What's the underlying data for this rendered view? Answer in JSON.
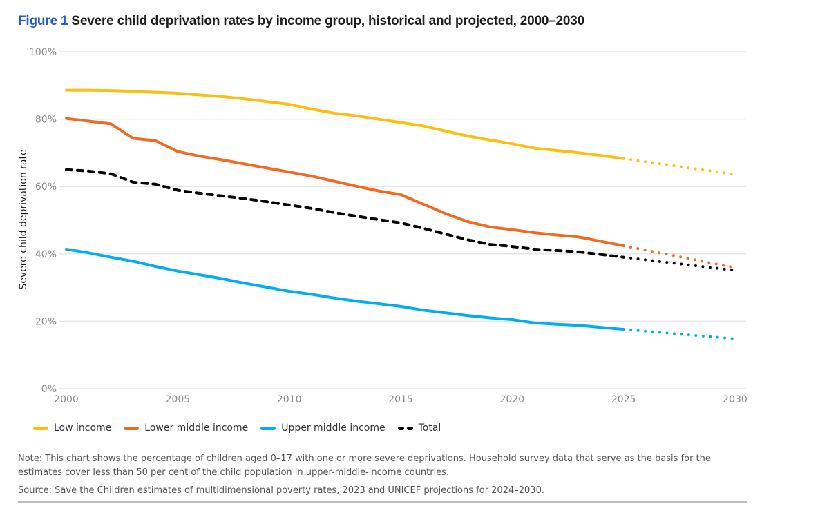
{
  "figure_label": "Figure 1",
  "title": "Severe child deprivation rates by income group, historical and projected, 2000–2030",
  "note": "Note: This chart shows the percentage of children aged 0–17 with one or more severe deprivations. Household survey data that serve as the basis for the estimates cover less than 50 per cent of the child population in upper-middle-income countries.",
  "source": "Source: Save the Children estimates of multidimensional poverty rates, 2023 and UNICEF projections for 2024–2030.",
  "legend": [
    {
      "name": "Low income",
      "color": "#fcbf10",
      "style": "solid"
    },
    {
      "name": "Lower middle income",
      "color": "#f26a21",
      "style": "solid"
    },
    {
      "name": "Upper middle income",
      "color": "#00aeef",
      "style": "solid"
    },
    {
      "name": "Total",
      "color": "#000000",
      "style": "dashed"
    }
  ],
  "chart_data": {
    "type": "line",
    "title": "Severe child deprivation rates by income group, historical and projected, 2000–2030",
    "xlabel": "",
    "ylabel": "Severe child deprivation rate",
    "xlim": [
      2000,
      2030
    ],
    "ylim": [
      0,
      100
    ],
    "x_ticks": [
      "2000",
      "2005",
      "2010",
      "2015",
      "2020",
      "2025",
      "2030"
    ],
    "y_ticks": [
      "0%",
      "20%",
      "40%",
      "60%",
      "80%",
      "100%"
    ],
    "y_tick_values": [
      0,
      20,
      40,
      60,
      80,
      100
    ],
    "grid": "horizontal",
    "legend_position": "bottom-left",
    "projection_start": 2025,
    "x": [
      2000,
      2001,
      2002,
      2003,
      2004,
      2005,
      2006,
      2007,
      2008,
      2009,
      2010,
      2011,
      2012,
      2013,
      2014,
      2015,
      2016,
      2017,
      2018,
      2019,
      2020,
      2021,
      2022,
      2023,
      2024,
      2025,
      2030
    ],
    "series": [
      {
        "name": "Low income",
        "color": "#fcbf10",
        "style": "solid",
        "values": [
          88.6,
          88.6,
          88.5,
          88.3,
          88.0,
          87.7,
          87.2,
          86.7,
          86.0,
          85.2,
          84.4,
          83.0,
          81.8,
          81.0,
          80.0,
          79.0,
          78.0,
          76.5,
          75.0,
          73.8,
          72.7,
          71.4,
          70.7,
          70.0,
          69.2,
          68.3,
          63.6
        ]
      },
      {
        "name": "Lower middle income",
        "color": "#f26a21",
        "style": "solid",
        "values": [
          80.2,
          79.4,
          78.6,
          74.3,
          73.6,
          70.4,
          69.0,
          67.9,
          66.7,
          65.5,
          64.3,
          63.1,
          61.6,
          60.1,
          58.7,
          57.6,
          54.8,
          52.0,
          49.6,
          48.0,
          47.2,
          46.3,
          45.6,
          45.0,
          43.7,
          42.4,
          35.9
        ]
      },
      {
        "name": "Upper middle income",
        "color": "#00aeef",
        "style": "solid",
        "values": [
          41.4,
          40.3,
          39.0,
          37.8,
          36.3,
          34.9,
          33.8,
          32.6,
          31.3,
          30.1,
          28.9,
          28.0,
          26.9,
          26.0,
          25.2,
          24.4,
          23.3,
          22.5,
          21.7,
          21.0,
          20.5,
          19.5,
          19.1,
          18.8,
          18.2,
          17.6,
          14.8
        ]
      },
      {
        "name": "Total",
        "color": "#000000",
        "style": "dashed",
        "values": [
          65.0,
          64.6,
          63.8,
          61.3,
          60.7,
          58.9,
          58.0,
          57.2,
          56.4,
          55.5,
          54.5,
          53.5,
          52.3,
          51.2,
          50.2,
          49.2,
          47.6,
          45.9,
          44.2,
          42.8,
          42.2,
          41.4,
          41.0,
          40.6,
          39.8,
          39.0,
          35.1
        ]
      }
    ]
  }
}
